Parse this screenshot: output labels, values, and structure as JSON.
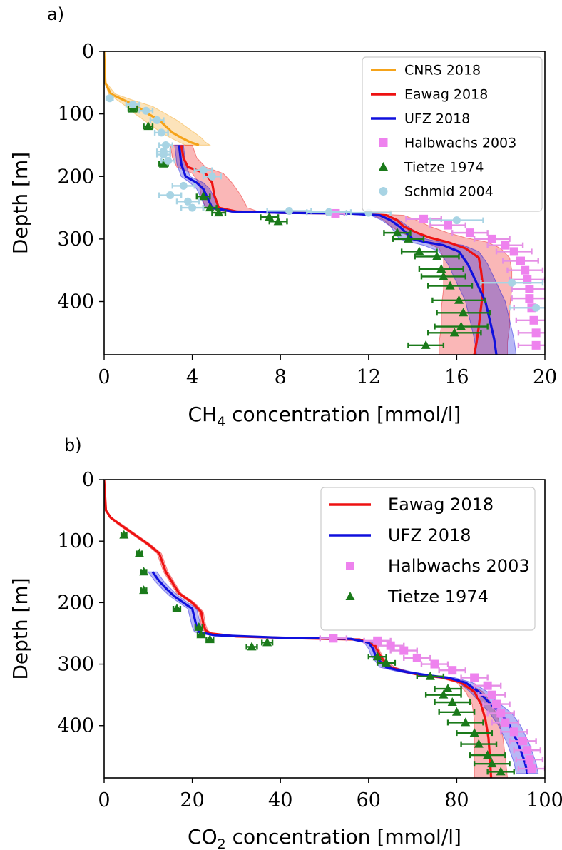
{
  "chart_data": [
    {
      "panel_label": "a)",
      "type": "line",
      "xlabel_main": "CH",
      "xlabel_sub": "4",
      "xlabel_rest": " concentration [mmol/l]",
      "ylabel": "Depth [m]",
      "xlim": [
        0,
        20
      ],
      "ylim": [
        485,
        0
      ],
      "xticks": [
        "0",
        "4",
        "8",
        "12",
        "16",
        "20"
      ],
      "yticks": [
        "0",
        "100",
        "200",
        "300",
        "400"
      ],
      "legend_position": "top-right",
      "colors": {
        "cnrs": "#f5a31a",
        "eawag": "#ee1111",
        "ufz": "#1010dd",
        "halbwachs": "#ee82ee",
        "tietze": "#1a7a1a",
        "schmid": "#a8d4e4"
      },
      "series": [
        {
          "name": "CNRS 2018",
          "kind": "line",
          "x": [
            0,
            0.05,
            0.3,
            0.9,
            1.5,
            2.0,
            2.5,
            2.8,
            3.1,
            3.5,
            3.9,
            4.3
          ],
          "y": [
            0,
            50,
            68,
            78,
            88,
            100,
            110,
            120,
            130,
            138,
            145,
            150
          ],
          "band_low": [
            0,
            0.05,
            0.2,
            0.6,
            1.0,
            1.4,
            1.8,
            2.2,
            2.6,
            3.0,
            3.4,
            3.7
          ],
          "band_high": [
            0,
            0.1,
            0.5,
            1.3,
            2.2,
            2.8,
            3.3,
            3.7,
            4.1,
            4.4,
            4.6,
            4.8
          ]
        },
        {
          "name": "Eawag 2018",
          "kind": "line",
          "x": [
            3.5,
            3.6,
            3.8,
            4.6,
            4.9,
            5.0,
            5.2,
            6.0,
            8.0,
            11.0,
            12.8,
            13.3,
            13.6,
            14.2,
            14.8,
            15.6,
            16.4,
            17.0,
            17.1,
            17.2,
            17.1,
            17.0,
            16.9,
            16.8
          ],
          "y": [
            150,
            170,
            185,
            195,
            210,
            230,
            250,
            256,
            258,
            259,
            262,
            270,
            280,
            290,
            298,
            305,
            315,
            330,
            350,
            380,
            410,
            440,
            465,
            485
          ],
          "band_low": [
            3.0,
            3.1,
            3.3,
            4.0,
            4.3,
            4.4,
            4.6,
            5.4,
            7.4,
            10.5,
            12.2,
            12.7,
            13.0,
            13.5,
            14.0,
            14.6,
            15.2,
            15.4,
            15.4,
            15.4,
            15.3,
            15.3,
            15.2,
            15.2
          ],
          "band_high": [
            4.0,
            4.2,
            4.6,
            5.4,
            5.8,
            6.2,
            6.5,
            7.0,
            9.0,
            11.8,
            13.6,
            14.2,
            14.8,
            15.6,
            16.4,
            17.4,
            18.0,
            18.4,
            18.5,
            18.5,
            18.4,
            18.4,
            18.3,
            18.3
          ]
        },
        {
          "name": "UFZ 2018",
          "kind": "line",
          "x": [
            3.4,
            3.5,
            3.7,
            4.2,
            4.5,
            4.7,
            4.9,
            5.8,
            8.0,
            11.0,
            12.5,
            13.0,
            13.4,
            13.7,
            14.0,
            14.6,
            15.4,
            16.1,
            16.5,
            16.9,
            17.3,
            17.5,
            17.7,
            17.8
          ],
          "y": [
            150,
            180,
            200,
            210,
            220,
            235,
            250,
            256,
            258,
            259,
            262,
            270,
            280,
            290,
            300,
            305,
            310,
            320,
            340,
            370,
            400,
            430,
            460,
            485
          ],
          "band_low": [
            3.2,
            3.3,
            3.5,
            3.9,
            4.2,
            4.4,
            4.6,
            5.5,
            7.6,
            10.6,
            12.1,
            12.6,
            13.0,
            13.2,
            13.4,
            13.9,
            14.5,
            15.2,
            15.6,
            16.0,
            16.4,
            16.6,
            16.8,
            16.9
          ],
          "band_high": [
            3.6,
            3.7,
            3.9,
            4.5,
            4.8,
            5.0,
            5.2,
            6.1,
            8.4,
            11.4,
            12.9,
            13.4,
            13.8,
            14.2,
            14.6,
            15.3,
            16.3,
            17.0,
            17.4,
            17.8,
            18.2,
            18.4,
            18.6,
            18.7
          ]
        },
        {
          "name": "Halbwachs 2003",
          "kind": "points",
          "x": [
            10.5,
            14.5,
            15.6,
            16.6,
            17.6,
            18.2,
            18.6,
            18.9,
            19.1,
            19.2,
            19.3,
            19.3,
            19.4,
            19.5,
            19.6,
            19.6
          ],
          "y": [
            259,
            268,
            278,
            290,
            300,
            310,
            320,
            335,
            350,
            365,
            380,
            395,
            410,
            430,
            450,
            470
          ],
          "xerr": [
            0.4,
            0.8,
            0.8,
            0.8,
            0.8,
            0.8,
            0.8,
            0.8,
            0.8,
            0.8,
            0.8,
            0.8,
            0.8,
            0.8,
            0.8,
            0.8
          ]
        },
        {
          "name": "Tietze 1974",
          "kind": "points",
          "x": [
            1.3,
            2.0,
            2.7,
            4.5,
            4.8,
            5.2,
            7.5,
            7.9,
            13.3,
            13.8,
            14.3,
            15.1,
            15.3,
            15.4,
            15.7,
            16.1,
            16.3,
            16.2,
            15.9,
            14.6
          ],
          "y": [
            92,
            120,
            180,
            232,
            250,
            258,
            265,
            272,
            290,
            300,
            320,
            328,
            348,
            360,
            375,
            398,
            418,
            440,
            450,
            470
          ],
          "xerr": [
            0.2,
            0.2,
            0.2,
            0.3,
            0.3,
            0.3,
            0.4,
            0.4,
            0.6,
            0.7,
            0.8,
            1.0,
            1.0,
            1.0,
            1.0,
            1.2,
            1.2,
            1.2,
            1.2,
            0.8
          ]
        },
        {
          "name": "Schmid 2004",
          "kind": "points",
          "x": [
            0.25,
            1.3,
            1.9,
            2.4,
            2.6,
            2.8,
            2.7,
            2.9,
            2.7,
            4.5,
            4.9,
            3.6,
            3.0,
            3.8,
            4.0,
            8.4,
            10.2,
            12.0,
            16.0,
            18.5,
            19.6
          ],
          "y": [
            75,
            85,
            95,
            110,
            130,
            150,
            165,
            175,
            160,
            190,
            200,
            215,
            230,
            240,
            250,
            255,
            257,
            258,
            270,
            370,
            410
          ],
          "xerr": [
            0.15,
            0.3,
            0.3,
            0.3,
            0.3,
            0.3,
            0.3,
            0.3,
            0.3,
            0.4,
            0.4,
            0.5,
            0.5,
            0.5,
            0.5,
            1.0,
            1.0,
            1.0,
            1.2,
            1.4,
            1.2
          ]
        }
      ]
    },
    {
      "panel_label": "b)",
      "type": "line",
      "xlabel_main": "CO",
      "xlabel_sub": "2",
      "xlabel_rest": " concentration [mmol/l]",
      "ylabel": "Depth [m]",
      "xlim": [
        0,
        100
      ],
      "ylim": [
        485,
        0
      ],
      "xticks": [
        "0",
        "20",
        "40",
        "60",
        "80",
        "100"
      ],
      "yticks": [
        "0",
        "100",
        "200",
        "300",
        "400"
      ],
      "legend_position": "top-right",
      "colors": {
        "eawag": "#ee1111",
        "ufz": "#1010dd",
        "halbwachs": "#ee82ee",
        "tietze": "#1a7a1a"
      },
      "series": [
        {
          "name": "Eawag 2018",
          "kind": "line",
          "x": [
            0,
            0.4,
            1.5,
            4,
            7,
            10,
            12.5,
            14,
            17,
            20,
            22,
            22.5,
            23,
            24,
            30,
            45,
            58,
            61.5,
            62.5,
            63.5,
            65,
            68,
            72,
            77,
            81,
            84,
            85.5,
            86.5,
            87.2,
            87.5,
            87.8
          ],
          "y": [
            0,
            50,
            62,
            75,
            90,
            105,
            120,
            150,
            185,
            200,
            215,
            235,
            245,
            250,
            255,
            258,
            260,
            270,
            285,
            295,
            305,
            312,
            318,
            322,
            330,
            345,
            365,
            390,
            420,
            450,
            485
          ],
          "band_low": [
            0,
            0.3,
            1.2,
            3.5,
            6.5,
            9.5,
            12,
            13.5,
            16.5,
            19.5,
            21.5,
            22,
            22.5,
            23.5,
            29.5,
            44.5,
            57.5,
            61,
            62,
            63,
            64.5,
            67,
            71,
            76,
            80,
            82,
            83.5,
            84,
            84,
            84,
            84
          ],
          "band_high": [
            0,
            0.5,
            1.8,
            4.5,
            7.5,
            10.5,
            13,
            14.5,
            17.5,
            20.5,
            22.5,
            23,
            23.5,
            24.5,
            30.5,
            45.5,
            58.5,
            62,
            63,
            64,
            66,
            69,
            73,
            78,
            82,
            86,
            88,
            89.5,
            90.5,
            91,
            91.5
          ]
        },
        {
          "name": "UFZ 2018",
          "kind": "line",
          "x": [
            11,
            12.5,
            14.5,
            16,
            18,
            20,
            20.5,
            21,
            21.5,
            25,
            40,
            56,
            60,
            61,
            61.5,
            62.5,
            64,
            68,
            73,
            78,
            82,
            85,
            87,
            90,
            92,
            94,
            95.5,
            96
          ],
          "y": [
            150,
            165,
            180,
            190,
            200,
            210,
            225,
            240,
            248,
            253,
            257,
            259,
            265,
            275,
            285,
            295,
            305,
            312,
            318,
            322,
            330,
            345,
            360,
            380,
            400,
            430,
            460,
            478
          ],
          "band_low": [
            10,
            11.5,
            13.5,
            15,
            17,
            19,
            19.5,
            20,
            20.5,
            24,
            39,
            55,
            59,
            60,
            60.5,
            61.5,
            62.5,
            66.5,
            71.5,
            76.5,
            80.5,
            83,
            85,
            87.5,
            89.5,
            91.5,
            93,
            93.5
          ],
          "band_high": [
            12,
            13.5,
            15.5,
            17,
            19,
            21,
            21.5,
            22,
            22.5,
            26,
            41,
            57,
            61,
            62,
            62.5,
            63.5,
            65.5,
            69.5,
            74.5,
            79.5,
            83.5,
            87,
            89,
            92.5,
            94.5,
            96.5,
            98,
            98.5
          ]
        },
        {
          "name": "Halbwachs 2003",
          "kind": "points",
          "x": [
            52,
            62,
            65,
            68,
            71,
            75,
            79,
            84,
            87,
            88,
            89,
            90,
            91,
            93,
            95,
            96,
            96.5,
            97
          ],
          "y": [
            258,
            262,
            270,
            278,
            290,
            300,
            310,
            322,
            335,
            350,
            365,
            380,
            395,
            410,
            425,
            440,
            455,
            470
          ],
          "xerr": [
            3,
            3,
            3,
            3,
            3,
            3,
            3,
            3,
            3,
            3,
            3,
            3,
            3,
            3,
            3,
            3,
            3,
            3
          ]
        },
        {
          "name": "Tietze 1974",
          "kind": "points",
          "x": [
            4.5,
            8,
            9,
            9,
            16.5,
            21.5,
            22,
            24,
            33.5,
            37,
            62,
            64,
            74,
            78,
            77,
            79,
            80,
            82,
            84,
            85,
            87,
            88,
            90
          ],
          "y": [
            90,
            120,
            150,
            180,
            210,
            240,
            252,
            260,
            272,
            265,
            288,
            298,
            320,
            340,
            350,
            362,
            378,
            395,
            412,
            430,
            448,
            462,
            475
          ],
          "xerr": [
            0.6,
            0.6,
            0.6,
            0.6,
            0.8,
            0.8,
            0.8,
            0.8,
            1.2,
            1.2,
            2,
            2,
            3,
            3,
            4,
            4,
            4,
            4,
            4,
            4,
            4,
            4,
            3
          ]
        }
      ]
    }
  ]
}
